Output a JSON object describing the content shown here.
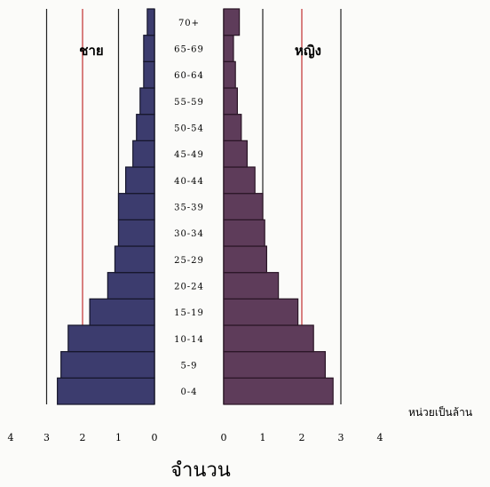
{
  "chart_data": {
    "type": "bar",
    "subtype": "population-pyramid",
    "categories": [
      "0-4",
      "5-9",
      "10-14",
      "15-19",
      "20-24",
      "25-29",
      "30-34",
      "35-39",
      "40-44",
      "45-49",
      "50-54",
      "55-59",
      "60-64",
      "65-69",
      "70+"
    ],
    "category_labels": [
      "0-4",
      "5-9",
      "10-14",
      "15-19",
      "20-24",
      "25-29",
      "30-34",
      "35-39",
      "40-44",
      "45-49",
      "50-54",
      "55-59",
      "60-64",
      "65-69",
      "70+"
    ],
    "series": [
      {
        "name": "ชาย",
        "side": "left",
        "color": "#3c3c6e",
        "values": [
          2.7,
          2.6,
          2.4,
          1.8,
          1.3,
          1.1,
          1.0,
          1.0,
          0.8,
          0.6,
          0.5,
          0.4,
          0.3,
          0.3,
          0.2
        ]
      },
      {
        "name": "หญิง",
        "side": "right",
        "color": "#5e3c5a",
        "values": [
          2.8,
          2.6,
          2.3,
          1.9,
          1.4,
          1.1,
          1.05,
          1.0,
          0.8,
          0.6,
          0.45,
          0.35,
          0.3,
          0.25,
          0.4
        ]
      }
    ],
    "xlim": [
      0,
      4
    ],
    "left_ticks": [
      "4",
      "3",
      "2",
      "1",
      "0"
    ],
    "right_ticks": [
      "0",
      "1",
      "2",
      "3",
      "4"
    ],
    "xlabel": "จำนวน",
    "unit_label": "หน่วยเป็นล้าน",
    "grid": true,
    "colors": {
      "grid": "#222222",
      "red_line": "#c03030"
    }
  }
}
